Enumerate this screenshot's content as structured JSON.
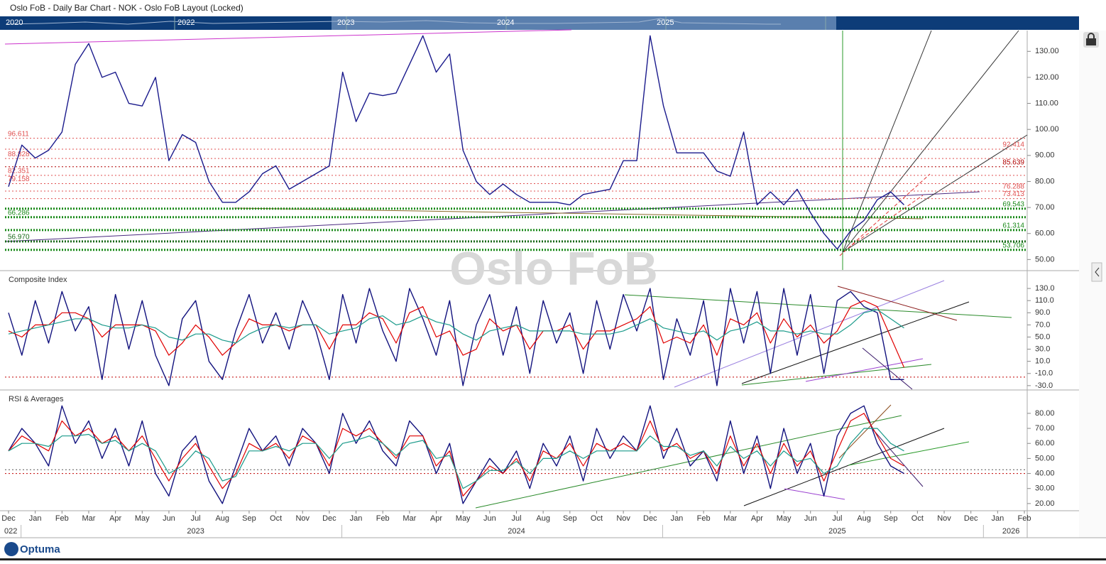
{
  "window_title": "Oslo FoB - Daily Bar Chart - NOK - Oslo FoB Layout (Locked)",
  "navigator_years": [
    "2020",
    "2022",
    "2023",
    "2024",
    "2025"
  ],
  "watermark": "Oslo FoB",
  "logo": "Optuma",
  "chart_data": [
    {
      "type": "line",
      "title": null,
      "ylim": [
        46,
        138
      ],
      "yticks": [
        {
          "value": 50,
          "label": "50.00"
        },
        {
          "value": 60,
          "label": "60.00"
        },
        {
          "value": 70,
          "label": "70.00"
        },
        {
          "value": 80,
          "label": "80.00"
        },
        {
          "value": 90,
          "label": "90.00"
        },
        {
          "value": 100,
          "label": "100.00"
        },
        {
          "value": 110,
          "label": "110.00"
        },
        {
          "value": 120,
          "label": "120.00"
        },
        {
          "value": 130,
          "label": "130.00"
        }
      ],
      "series": [
        {
          "name": null,
          "color": "#1a1a8c",
          "values": [
            78,
            94,
            89,
            92,
            99,
            125,
            133,
            120,
            122,
            110,
            109,
            120,
            88,
            98,
            95,
            80,
            72,
            72,
            76,
            83,
            86,
            77,
            80,
            83,
            86,
            122,
            103,
            114,
            113,
            114,
            125,
            136,
            122,
            129,
            92,
            80,
            75,
            79,
            75,
            72,
            72,
            72,
            71,
            75,
            76,
            77,
            88,
            88,
            136,
            109,
            91,
            91,
            91,
            84,
            82,
            99,
            71,
            76,
            71,
            77,
            68,
            60,
            54,
            61,
            65,
            73,
            76,
            71,
            null,
            null,
            null,
            null,
            null,
            null,
            null,
            null,
            null
          ]
        }
      ],
      "levels_left": [
        {
          "value": 96.611,
          "color": "#e05050"
        },
        {
          "value": 88.828,
          "color": "#e05050"
        },
        {
          "value": 82.351,
          "color": "#e05050"
        },
        {
          "value": 79.158,
          "color": "#e05050"
        },
        {
          "value": 66.286,
          "color": "#1a8a1a"
        },
        {
          "value": 56.97,
          "label": "56.970",
          "color": "#1a6a1a"
        }
      ],
      "levels_right": [
        {
          "value": 92.414,
          "color": "#e05050"
        },
        {
          "value": 85.639,
          "color": "#b00000"
        },
        {
          "value": 76.288,
          "color": "#e05050"
        },
        {
          "value": 73.413,
          "color": "#e05050"
        },
        {
          "value": 69.543,
          "color": "#1a8a1a"
        },
        {
          "value": 61.314,
          "color": "#1a8a1a"
        },
        {
          "value": 53.706,
          "color": "#1a8a1a"
        }
      ]
    },
    {
      "type": "line",
      "title": "Composite Index",
      "ylim": [
        -36,
        157
      ],
      "yticks": [
        {
          "value": -30,
          "label": "-30.0"
        },
        {
          "value": -10,
          "label": "-10.0"
        },
        {
          "value": 10,
          "label": "10.0"
        },
        {
          "value": 30,
          "label": "30.0"
        },
        {
          "value": 50,
          "label": "50.0"
        },
        {
          "value": 70,
          "label": "70.0"
        },
        {
          "value": 90,
          "label": "90.0"
        },
        {
          "value": 110,
          "label": "110.0"
        },
        {
          "value": 130,
          "label": "130.0"
        }
      ],
      "series": [
        {
          "name": null,
          "color": "#12127e",
          "values": [
            90,
            20,
            110,
            40,
            125,
            60,
            100,
            -20,
            120,
            30,
            110,
            20,
            -30,
            80,
            110,
            10,
            -20,
            60,
            120,
            40,
            90,
            30,
            110,
            60,
            -20,
            120,
            40,
            130,
            60,
            10,
            130,
            80,
            20,
            110,
            -30,
            70,
            120,
            20,
            100,
            -10,
            110,
            40,
            90,
            -10,
            110,
            30,
            120,
            60,
            130,
            -20,
            80,
            20,
            110,
            -30,
            130,
            40,
            125,
            -10,
            130,
            20,
            120,
            -10,
            110,
            125,
            100,
            90,
            -20,
            -20,
            null,
            null,
            null,
            null,
            null,
            null,
            null,
            null,
            null
          ]
        },
        {
          "name": null,
          "color": "#e00000",
          "values": [
            60,
            50,
            70,
            70,
            90,
            90,
            80,
            50,
            70,
            70,
            70,
            60,
            20,
            40,
            70,
            50,
            20,
            40,
            80,
            70,
            70,
            60,
            70,
            70,
            30,
            70,
            70,
            90,
            80,
            40,
            90,
            100,
            50,
            60,
            20,
            30,
            80,
            60,
            70,
            30,
            60,
            60,
            70,
            30,
            60,
            60,
            70,
            80,
            100,
            40,
            50,
            40,
            70,
            20,
            80,
            70,
            90,
            40,
            80,
            50,
            70,
            40,
            60,
            100,
            110,
            100,
            50,
            0,
            null,
            null,
            null,
            null,
            null,
            null,
            null,
            null,
            null
          ]
        },
        {
          "name": null,
          "color": "#1a9a8a",
          "values": [
            55,
            60,
            65,
            70,
            75,
            80,
            80,
            70,
            65,
            65,
            70,
            65,
            50,
            45,
            55,
            55,
            45,
            40,
            55,
            65,
            70,
            65,
            70,
            70,
            55,
            60,
            65,
            80,
            85,
            70,
            75,
            85,
            75,
            70,
            55,
            45,
            60,
            65,
            70,
            60,
            60,
            60,
            60,
            55,
            55,
            55,
            60,
            70,
            80,
            65,
            60,
            55,
            60,
            45,
            60,
            65,
            75,
            60,
            60,
            55,
            60,
            55,
            55,
            70,
            90,
            95,
            80,
            65,
            null,
            null,
            null,
            null,
            null,
            null,
            null,
            null,
            null
          ]
        }
      ],
      "levels": [
        {
          "value": -16,
          "color": "#c00000"
        }
      ]
    },
    {
      "type": "line",
      "title": "RSI & Averages",
      "ylim": [
        15.7,
        94.6
      ],
      "yticks": [
        {
          "value": 20,
          "label": "20.00"
        },
        {
          "value": 30,
          "label": "30.00"
        },
        {
          "value": 40,
          "label": "40.00"
        },
        {
          "value": 50,
          "label": "50.00"
        },
        {
          "value": 60,
          "label": "60.00"
        },
        {
          "value": 70,
          "label": "70.00"
        },
        {
          "value": 80,
          "label": "80.00"
        }
      ],
      "series": [
        {
          "name": null,
          "color": "#12127e",
          "values": [
            55,
            70,
            60,
            45,
            85,
            60,
            75,
            50,
            70,
            45,
            75,
            40,
            25,
            55,
            65,
            35,
            20,
            45,
            70,
            55,
            65,
            45,
            70,
            60,
            40,
            80,
            60,
            75,
            55,
            45,
            75,
            65,
            40,
            60,
            20,
            35,
            50,
            40,
            55,
            30,
            60,
            45,
            65,
            35,
            70,
            50,
            65,
            55,
            85,
            50,
            70,
            45,
            55,
            35,
            75,
            40,
            65,
            30,
            70,
            40,
            60,
            25,
            65,
            80,
            85,
            60,
            45,
            40,
            null,
            null,
            null,
            null,
            null,
            null,
            null,
            null,
            null
          ]
        },
        {
          "name": null,
          "color": "#e00000",
          "values": [
            55,
            65,
            60,
            55,
            75,
            65,
            70,
            60,
            65,
            55,
            65,
            50,
            35,
            50,
            60,
            45,
            30,
            40,
            60,
            55,
            60,
            50,
            65,
            60,
            45,
            70,
            65,
            70,
            60,
            50,
            65,
            65,
            45,
            55,
            25,
            35,
            45,
            40,
            50,
            35,
            55,
            50,
            60,
            45,
            60,
            55,
            60,
            55,
            75,
            55,
            60,
            50,
            55,
            40,
            65,
            45,
            60,
            40,
            60,
            45,
            55,
            35,
            55,
            75,
            80,
            65,
            50,
            45,
            null,
            null,
            null,
            null,
            null,
            null,
            null,
            null,
            null
          ]
        },
        {
          "name": null,
          "color": "#1a9a8a",
          "values": [
            55,
            60,
            60,
            58,
            65,
            65,
            66,
            60,
            62,
            55,
            60,
            55,
            40,
            45,
            55,
            50,
            35,
            38,
            55,
            55,
            58,
            55,
            60,
            60,
            50,
            60,
            62,
            65,
            60,
            52,
            60,
            62,
            50,
            52,
            30,
            35,
            42,
            42,
            48,
            40,
            50,
            50,
            55,
            50,
            55,
            55,
            55,
            55,
            65,
            58,
            58,
            52,
            55,
            45,
            58,
            50,
            55,
            45,
            55,
            48,
            50,
            40,
            45,
            60,
            70,
            70,
            60,
            55,
            null,
            null,
            null,
            null,
            null,
            null,
            null,
            null,
            null
          ]
        }
      ],
      "levels": [
        {
          "value": 40,
          "color": "#c00000"
        },
        {
          "value": 42.5,
          "color": "#555555"
        }
      ],
      "categories": [
        "Dec",
        null,
        "Jan",
        null,
        "Feb",
        null,
        "Mar",
        null,
        "Apr",
        null,
        "May",
        null,
        "Jun",
        null,
        "Jul",
        null,
        "Aug",
        null,
        "Sep",
        null,
        "Oct",
        null,
        "Nov",
        null,
        "Dec",
        null,
        "Jan",
        null,
        "Feb",
        null,
        "Mar",
        null,
        "Apr",
        null,
        "May",
        null,
        "Jun",
        null,
        "Jul",
        null,
        "Aug",
        null,
        "Sep",
        null,
        "Oct",
        null,
        "Nov",
        null,
        "Dec",
        null,
        "Jan",
        null,
        "Feb",
        null,
        "Mar",
        null,
        "Apr",
        null,
        "May",
        null,
        "Jun",
        null,
        "Jul",
        null,
        "Aug",
        null,
        "Sep",
        null,
        "Oct",
        null,
        "Nov",
        null,
        "Dec",
        null,
        "Jan",
        null,
        "Feb"
      ],
      "year_labels": [
        "022",
        "2023",
        "2024",
        "2025",
        "2026"
      ]
    }
  ]
}
